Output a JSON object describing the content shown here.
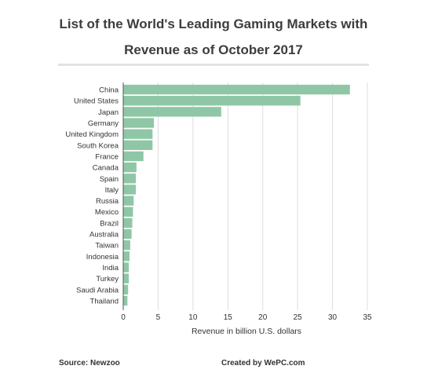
{
  "title": {
    "line1": "List of the World's Leading Gaming Markets with",
    "line2": "Revenue as of October 2017"
  },
  "footer": {
    "source": "Source: Newzoo",
    "credit": "Created by WePC.com"
  },
  "colors": {
    "bar": "#8fc7a6",
    "grid": "#dddddd",
    "axis": "#555555",
    "text": "#333333"
  },
  "chart_data": {
    "type": "bar",
    "orientation": "horizontal",
    "categories": [
      "China",
      "United States",
      "Japan",
      "Germany",
      "United Kingdom",
      "South Korea",
      "France",
      "Canada",
      "Spain",
      "Italy",
      "Russia",
      "Mexico",
      "Brazil",
      "Australia",
      "Taiwan",
      "Indonesia",
      "India",
      "Turkey",
      "Saudi Arabia",
      "Thailand"
    ],
    "values": [
      32.5,
      25.4,
      14.05,
      4.4,
      4.2,
      4.2,
      2.9,
      1.9,
      1.8,
      1.8,
      1.5,
      1.4,
      1.3,
      1.2,
      1.0,
      0.9,
      0.8,
      0.8,
      0.7,
      0.6
    ],
    "xlabel": "Revenue in billion U.S. dollars",
    "ylabel": "",
    "xlim": [
      0,
      35
    ],
    "xticks": [
      0,
      5,
      10,
      15,
      20,
      25,
      30,
      35
    ],
    "grid": true
  }
}
